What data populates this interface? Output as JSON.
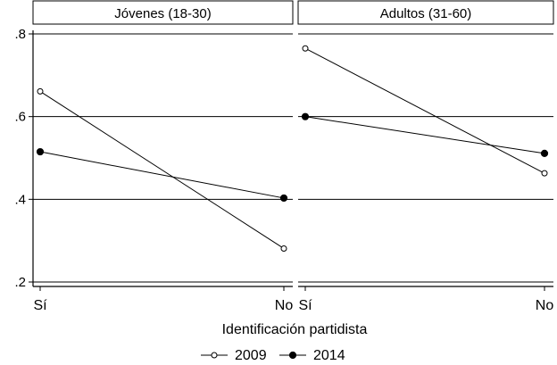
{
  "chart_data": {
    "type": "line",
    "panels": [
      {
        "title": "Jóvenes (18-30)",
        "categories": [
          "Sí",
          "No"
        ],
        "series": [
          {
            "name": "2009",
            "values": [
              0.661,
              0.281
            ]
          },
          {
            "name": "2014",
            "values": [
              0.515,
              0.403
            ]
          }
        ]
      },
      {
        "title": "Adultos (31-60)",
        "categories": [
          "Sí",
          "No"
        ],
        "series": [
          {
            "name": "2009",
            "values": [
              0.765,
              0.463
            ]
          },
          {
            "name": "2014",
            "values": [
              0.6,
              0.511
            ]
          }
        ]
      }
    ],
    "xlabel": "Identificación partidista",
    "ylabel": "",
    "ylim": [
      0.2,
      0.8
    ],
    "yticks": [
      0.2,
      0.4,
      0.6,
      0.8
    ],
    "ytick_labels": [
      ".2",
      ".4",
      ".6",
      ".8"
    ],
    "grid": true,
    "legend": {
      "placement": "bottom-center",
      "entries": [
        {
          "label": "2009",
          "marker": "hollow-circle"
        },
        {
          "label": "2014",
          "marker": "filled-circle"
        }
      ]
    }
  }
}
